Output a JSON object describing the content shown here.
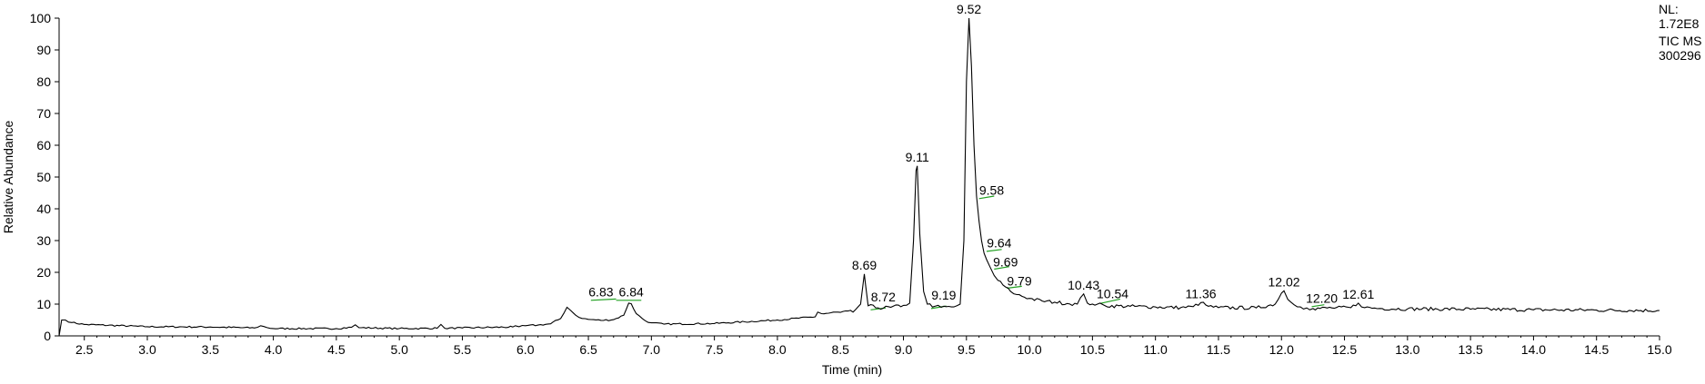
{
  "info": {
    "nl_label": "NL:",
    "nl_value": "1.72E8",
    "trace": "TIC  MS",
    "sample": "300296"
  },
  "chart_data": {
    "type": "line",
    "title": "",
    "xlabel": "Time (min)",
    "ylabel": "Relative Abundance",
    "xlim": [
      2.3,
      15.0
    ],
    "ylim": [
      0,
      100
    ],
    "x_ticks": [
      "2.5",
      "3.0",
      "3.5",
      "4.0",
      "4.5",
      "5.0",
      "5.5",
      "6.0",
      "6.5",
      "7.0",
      "7.5",
      "8.0",
      "8.5",
      "9.0",
      "9.5",
      "10.0",
      "10.5",
      "11.0",
      "11.5",
      "12.0",
      "12.5",
      "13.0",
      "13.5",
      "14.0",
      "14.5",
      "15.0"
    ],
    "y_ticks": [
      "0",
      "10",
      "20",
      "30",
      "40",
      "50",
      "60",
      "70",
      "80",
      "90",
      "100"
    ],
    "line_color": "#000000",
    "baseline_marker_color": "#22a022",
    "series": [
      {
        "x": [
          2.3,
          2.32,
          2.35,
          2.4,
          2.5,
          3.0,
          3.5,
          3.85,
          3.9,
          3.95,
          4.0,
          4.5,
          4.62,
          4.65,
          4.68,
          5.0,
          5.3,
          5.33,
          5.36,
          5.5,
          5.9,
          5.92,
          5.95,
          6.0,
          6.1,
          6.2,
          6.28,
          6.33,
          6.36,
          6.4,
          6.45,
          6.5,
          6.6,
          6.7,
          6.78,
          6.82,
          6.84,
          6.88,
          6.95,
          7.0,
          7.1,
          7.5,
          8.0,
          8.3,
          8.32,
          8.35,
          8.5,
          8.6,
          8.66,
          8.69,
          8.7,
          8.72,
          8.8,
          8.9,
          9.0,
          9.05,
          9.08,
          9.1,
          9.11,
          9.13,
          9.16,
          9.19,
          9.25,
          9.3,
          9.4,
          9.45,
          9.48,
          9.5,
          9.52,
          9.54,
          9.56,
          9.58,
          9.6,
          9.62,
          9.64,
          9.66,
          9.69,
          9.72,
          9.75,
          9.79,
          9.85,
          9.9,
          10.0,
          10.1,
          10.2,
          10.3,
          10.38,
          10.43,
          10.46,
          10.5,
          10.54,
          10.6,
          10.8,
          11.0,
          11.2,
          11.3,
          11.36,
          11.42,
          11.5,
          11.8,
          11.95,
          12.0,
          12.02,
          12.05,
          12.1,
          12.15,
          12.2,
          12.25,
          12.4,
          12.55,
          12.61,
          12.66,
          12.8,
          13.0,
          13.5,
          14.0,
          14.5,
          15.0
        ],
        "y": [
          0,
          5,
          5,
          4.2,
          3.6,
          2.9,
          2.8,
          2.5,
          3.2,
          2.6,
          2.3,
          2.3,
          2.7,
          3.5,
          2.6,
          2.3,
          2.4,
          3.6,
          2.4,
          2.5,
          2.8,
          3.2,
          2.9,
          3.2,
          3.4,
          3.8,
          5.5,
          9,
          8,
          6.5,
          5.5,
          5.2,
          4.9,
          5.1,
          6.5,
          10.3,
          10.1,
          7,
          4.8,
          4.1,
          3.7,
          3.9,
          5,
          6,
          7.5,
          7,
          7.4,
          7.5,
          10,
          19.5,
          16,
          9.5,
          8.8,
          9,
          9.6,
          10.3,
          30,
          52,
          53.5,
          32,
          14,
          10,
          9.3,
          9,
          9.1,
          10,
          30,
          80,
          100,
          85,
          60,
          44,
          36,
          30,
          26,
          24,
          21.5,
          19,
          17.5,
          16,
          14,
          13,
          11.8,
          11,
          10.6,
          10.2,
          10,
          13.2,
          10.3,
          10,
          10,
          9.5,
          9.3,
          9.1,
          8.9,
          9.2,
          10.5,
          9.3,
          8.9,
          8.8,
          10,
          13.5,
          14.2,
          11.5,
          9.8,
          9.1,
          8.8,
          8.6,
          8.8,
          8.9,
          10.3,
          8.9,
          8.6,
          8.5,
          8.4,
          8.2,
          8.1,
          8
        ]
      }
    ],
    "peak_labels": [
      {
        "text": "6.83",
        "x": 6.6,
        "y": 11
      },
      {
        "text": "6.84",
        "x": 6.84,
        "y": 11
      },
      {
        "text": "8.69",
        "x": 8.69,
        "y": 19.5
      },
      {
        "text": "8.72",
        "x": 8.84,
        "y": 9.5
      },
      {
        "text": "9.11",
        "x": 9.11,
        "y": 53.5
      },
      {
        "text": "9.19",
        "x": 9.32,
        "y": 10
      },
      {
        "text": "9.52",
        "x": 9.52,
        "y": 100
      },
      {
        "text": "9.58",
        "x": 9.7,
        "y": 43
      },
      {
        "text": "9.64",
        "x": 9.76,
        "y": 26.5
      },
      {
        "text": "9.69",
        "x": 9.81,
        "y": 20.5
      },
      {
        "text": "9.79",
        "x": 9.92,
        "y": 14.5
      },
      {
        "text": "10.43",
        "x": 10.43,
        "y": 13.2
      },
      {
        "text": "10.54",
        "x": 10.66,
        "y": 10.5
      },
      {
        "text": "11.36",
        "x": 11.36,
        "y": 10.5
      },
      {
        "text": "12.02",
        "x": 12.02,
        "y": 14.2
      },
      {
        "text": "12.20",
        "x": 12.32,
        "y": 9
      },
      {
        "text": "12.61",
        "x": 12.61,
        "y": 10.3
      }
    ],
    "baseline_marks": [
      {
        "x1": 6.52,
        "y1": 11.2,
        "x2": 6.72,
        "y2": 11.6
      },
      {
        "x1": 6.72,
        "y1": 11.2,
        "x2": 6.92,
        "y2": 11.2
      },
      {
        "x1": 8.74,
        "y1": 8.2,
        "x2": 8.86,
        "y2": 8.8
      },
      {
        "x1": 9.22,
        "y1": 8.6,
        "x2": 9.34,
        "y2": 9.4
      },
      {
        "x1": 9.6,
        "y1": 43.2,
        "x2": 9.72,
        "y2": 44
      },
      {
        "x1": 9.66,
        "y1": 26.6,
        "x2": 9.78,
        "y2": 27.2
      },
      {
        "x1": 9.72,
        "y1": 21,
        "x2": 9.84,
        "y2": 21.8
      },
      {
        "x1": 9.82,
        "y1": 15,
        "x2": 9.94,
        "y2": 15.6
      },
      {
        "x1": 10.56,
        "y1": 10.2,
        "x2": 10.72,
        "y2": 11.6
      },
      {
        "x1": 12.24,
        "y1": 9.2,
        "x2": 12.34,
        "y2": 9.8
      }
    ]
  }
}
